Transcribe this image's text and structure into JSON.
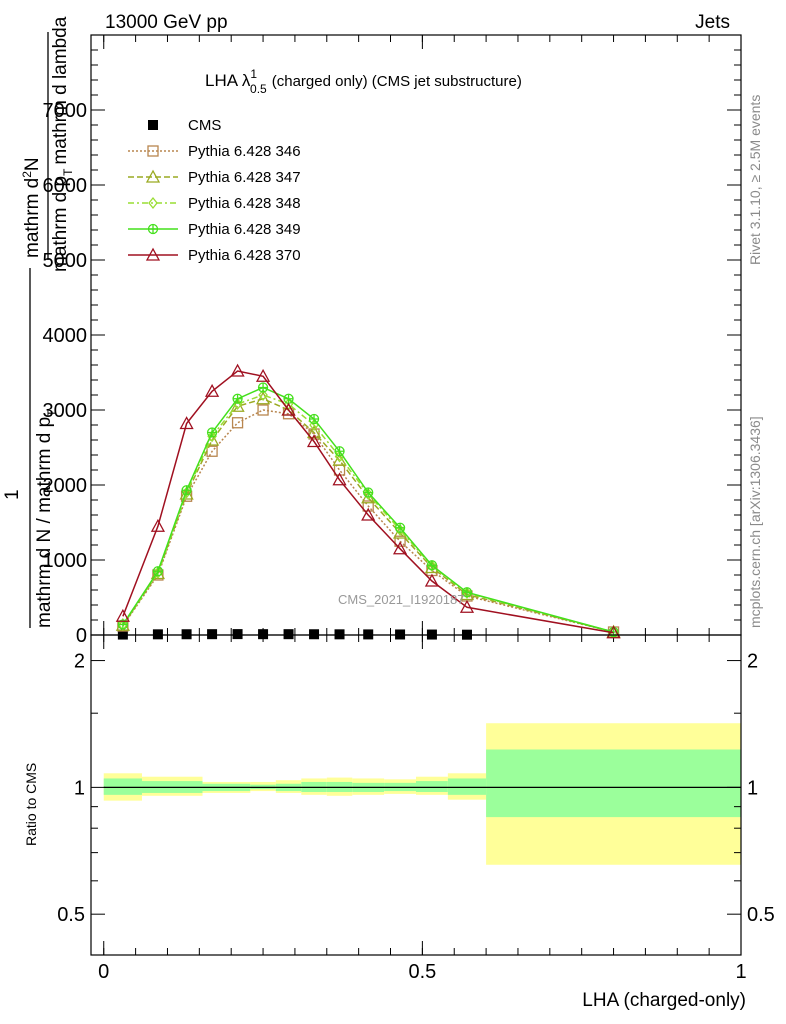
{
  "header": {
    "left": "13000 GeV pp",
    "right": "Jets"
  },
  "side_labels": {
    "rivet": "Rivet 3.1.10, ≥ 2.5M events",
    "mcplots": "mcplots.cern.ch [arXiv:1306.3436]"
  },
  "chart_data": [
    {
      "type": "line",
      "title": "LHA λ",
      "title_sup": "1",
      "title_sub": "0.5",
      "title_rest": "(charged only) (CMS jet substructure)",
      "watermark": "CMS_2021_I1920187",
      "ylabel_parts": {
        "one": "1",
        "numerator": "mathrm d",
        "numerator_sup": "2",
        "numerator_end": "N",
        "denominator_a": "mathrm d N / mathrm d p",
        "denominator_b": "mathrm d p",
        "denominator_c": "mathrm d lambda",
        "sub_T": "T"
      },
      "ylim": [
        0,
        8000
      ],
      "yticks": [
        0,
        1000,
        2000,
        3000,
        4000,
        5000,
        6000,
        7000
      ],
      "ytick_labels": [
        "0",
        "1000",
        "2000",
        "3000",
        "4000",
        "5000",
        "6000",
        "7000"
      ],
      "xlim": [
        -0.02,
        1.0
      ],
      "x": [
        0.03,
        0.085,
        0.13,
        0.17,
        0.21,
        0.25,
        0.29,
        0.33,
        0.37,
        0.415,
        0.465,
        0.515,
        0.57,
        0.8
      ],
      "legend_placement": "top-left",
      "series": [
        {
          "name": "CMS",
          "color": "#000000",
          "marker": "square-filled",
          "dash": "none",
          "values": [
            6,
            9,
            10,
            11,
            12,
            11,
            11,
            10,
            9,
            8,
            7,
            6,
            4,
            null
          ]
        },
        {
          "name": "Pythia 6.428 346",
          "color": "#b8864f",
          "marker": "square-open",
          "dash": "2,2",
          "values": [
            120,
            800,
            1850,
            2450,
            2830,
            3000,
            2950,
            2680,
            2200,
            1720,
            1250,
            860,
            520,
            40
          ]
        },
        {
          "name": "Pythia 6.428 347",
          "color": "#9aaa22",
          "marker": "triangle-open",
          "dash": "6,3",
          "values": [
            130,
            820,
            1880,
            2600,
            3050,
            3150,
            3000,
            2700,
            2330,
            1830,
            1360,
            900,
            540,
            40
          ]
        },
        {
          "name": "Pythia 6.428 348",
          "color": "#99dd33",
          "marker": "diamond-open",
          "dash": "6,3,2,3",
          "values": [
            135,
            830,
            1900,
            2650,
            3080,
            3200,
            3080,
            2800,
            2380,
            1880,
            1400,
            920,
            560,
            40
          ]
        },
        {
          "name": "Pythia 6.428 349",
          "color": "#44e01c",
          "marker": "cross-circle",
          "dash": "none",
          "values": [
            140,
            850,
            1930,
            2700,
            3150,
            3300,
            3150,
            2880,
            2450,
            1900,
            1430,
            930,
            570,
            40
          ]
        },
        {
          "name": "Pythia 6.428 370",
          "color": "#a01020",
          "marker": "triangle-open",
          "dash": "none",
          "values": [
            250,
            1450,
            2820,
            3250,
            3520,
            3450,
            3000,
            2580,
            2070,
            1600,
            1150,
            720,
            370,
            30
          ]
        }
      ]
    },
    {
      "type": "area",
      "ylabel": "Ratio to CMS",
      "xlabel": "LHA (charged-only)",
      "ylim": [
        0.4,
        2.3
      ],
      "y_scale": "log",
      "yticks": [
        0.5,
        1,
        2
      ],
      "ytick_labels": [
        "0.5",
        "1",
        "2"
      ],
      "xticks": [
        0,
        0.5,
        1
      ],
      "xtick_labels": [
        "0",
        "0.5",
        "1"
      ],
      "band_colors": {
        "stat": "#9bff9b",
        "total": "#ffff99"
      },
      "bins": [
        0.0,
        0.06,
        0.155,
        0.23,
        0.27,
        0.31,
        0.35,
        0.39,
        0.44,
        0.49,
        0.54,
        0.6,
        1.0
      ],
      "band_total_lo": [
        0.93,
        0.955,
        0.97,
        0.98,
        0.97,
        0.96,
        0.955,
        0.96,
        0.965,
        0.96,
        0.935,
        0.655
      ],
      "band_total_hi": [
        1.08,
        1.06,
        1.03,
        1.03,
        1.04,
        1.05,
        1.055,
        1.05,
        1.045,
        1.06,
        1.08,
        1.42
      ],
      "band_stat_lo": [
        0.96,
        0.97,
        0.98,
        0.99,
        0.98,
        0.975,
        0.975,
        0.975,
        0.98,
        0.975,
        0.96,
        0.85
      ],
      "band_stat_hi": [
        1.05,
        1.035,
        1.02,
        1.015,
        1.02,
        1.03,
        1.03,
        1.025,
        1.025,
        1.035,
        1.05,
        1.23
      ],
      "reference_line": 1
    }
  ]
}
